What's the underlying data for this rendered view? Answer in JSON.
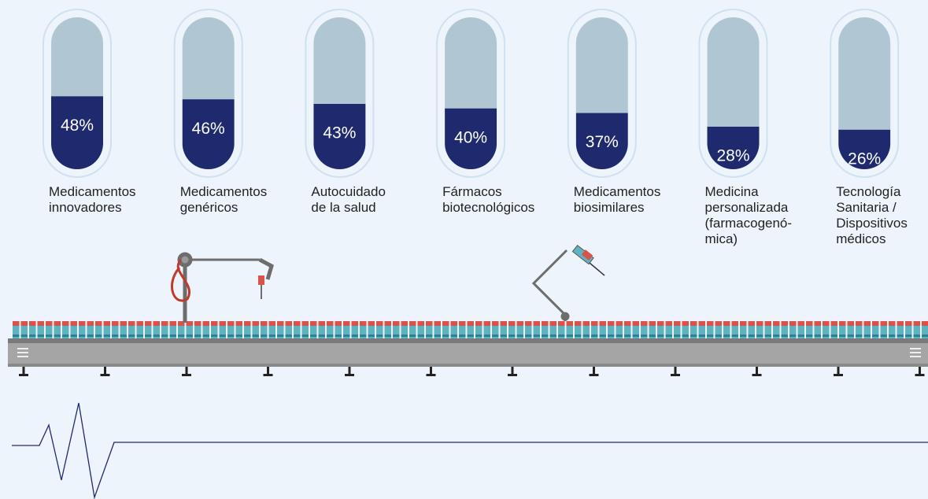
{
  "chart_data": {
    "type": "capsule",
    "categories": [
      "Medicamentos\ninnovadores",
      "Medicamentos\ngenéricos",
      "Autocuidado\nde la salud",
      "Fármacos\nbiotecnológicos",
      "Medicamentos\nbiosimilares",
      "Medicina\npersonalizada\n(farmacogenó-\nmica)",
      "Tecnología\nSanitaria /\nDispositivos\nmédicos"
    ],
    "values": [
      48,
      46,
      43,
      40,
      37,
      28,
      26
    ],
    "value_labels": [
      "48%",
      "46%",
      "43%",
      "40%",
      "37%",
      "28%",
      "26%"
    ],
    "ylim": [
      0,
      100
    ],
    "color": "#1f2a6e",
    "track_color": "#b0c7d3"
  }
}
